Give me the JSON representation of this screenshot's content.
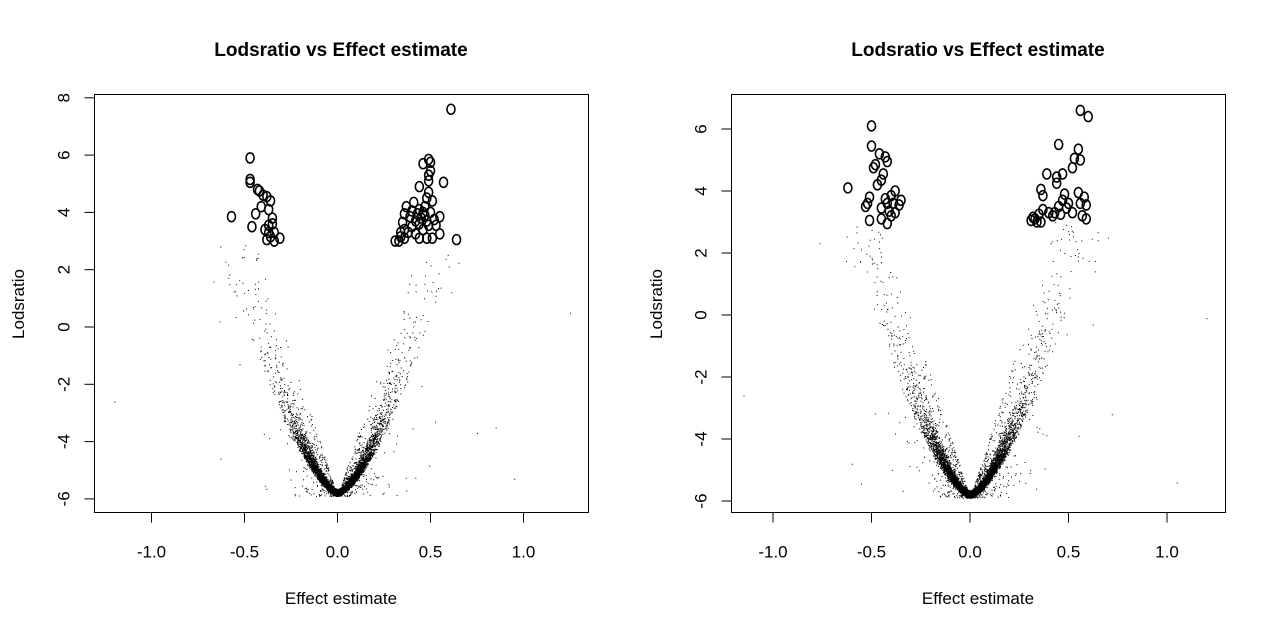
{
  "chart_data": [
    {
      "type": "scatter",
      "title": "Lodsratio vs Effect estimate",
      "xlabel": "Effect estimate",
      "ylabel": "Lodsratio",
      "xlim": [
        -1.3,
        1.35
      ],
      "ylim": [
        -6.3,
        8.2
      ],
      "xticks": [
        -1.0,
        -0.5,
        0.0,
        0.5,
        1.0
      ],
      "xtick_labels": [
        "-1.0",
        "-0.5",
        "0.0",
        "0.5",
        "1.0"
      ],
      "yticks": [
        -6,
        -4,
        -2,
        0,
        2,
        4,
        6,
        8
      ],
      "ytick_labels": [
        "-6",
        "-4",
        "-2",
        "0",
        "2",
        "4",
        "6",
        "8"
      ],
      "grid": false,
      "legend": "none",
      "background_points": {
        "description": "volcano-shaped cloud of small dots: y ≈ -5.9 + k·|x|, dense near x=0",
        "min_y": -5.9,
        "vertex_x": 0.0,
        "approx_count": 6000,
        "outliers": [
          [
            -1.2,
            -2.6
          ],
          [
            1.25,
            0.5
          ],
          [
            -0.63,
            -4.6
          ],
          [
            0.85,
            -3.5
          ],
          [
            0.95,
            -5.3
          ],
          [
            0.75,
            -3.7
          ]
        ]
      },
      "highlighted_points": [
        [
          0.61,
          7.6
        ],
        [
          -0.47,
          5.9
        ],
        [
          -0.57,
          3.85
        ],
        [
          -0.47,
          5.15
        ],
        [
          -0.47,
          5.05
        ],
        [
          -0.43,
          4.8
        ],
        [
          -0.42,
          4.75
        ],
        [
          -0.4,
          4.6
        ],
        [
          -0.38,
          4.55
        ],
        [
          -0.36,
          4.4
        ],
        [
          -0.41,
          4.2
        ],
        [
          -0.37,
          4.1
        ],
        [
          -0.44,
          3.95
        ],
        [
          -0.35,
          3.8
        ],
        [
          -0.35,
          3.6
        ],
        [
          -0.37,
          3.55
        ],
        [
          -0.46,
          3.5
        ],
        [
          -0.39,
          3.4
        ],
        [
          -0.37,
          3.3
        ],
        [
          -0.34,
          3.3
        ],
        [
          -0.36,
          3.15
        ],
        [
          -0.38,
          3.05
        ],
        [
          -0.34,
          3.0
        ],
        [
          -0.31,
          3.1
        ],
        [
          0.49,
          5.85
        ],
        [
          0.5,
          5.75
        ],
        [
          0.46,
          5.7
        ],
        [
          0.5,
          5.45
        ],
        [
          0.49,
          5.3
        ],
        [
          0.49,
          5.1
        ],
        [
          0.57,
          5.05
        ],
        [
          0.44,
          4.9
        ],
        [
          0.49,
          4.7
        ],
        [
          0.48,
          4.5
        ],
        [
          0.51,
          4.4
        ],
        [
          0.41,
          4.35
        ],
        [
          0.47,
          4.2
        ],
        [
          0.37,
          4.2
        ],
        [
          0.44,
          4.1
        ],
        [
          0.4,
          4.05
        ],
        [
          0.46,
          4.0
        ],
        [
          0.5,
          4.0
        ],
        [
          0.36,
          3.95
        ],
        [
          0.43,
          3.95
        ],
        [
          0.47,
          3.9
        ],
        [
          0.55,
          3.85
        ],
        [
          0.39,
          3.85
        ],
        [
          0.45,
          3.8
        ],
        [
          0.52,
          3.75
        ],
        [
          0.42,
          3.7
        ],
        [
          0.48,
          3.7
        ],
        [
          0.35,
          3.65
        ],
        [
          0.44,
          3.6
        ],
        [
          0.49,
          3.55
        ],
        [
          0.53,
          3.55
        ],
        [
          0.4,
          3.5
        ],
        [
          0.36,
          3.4
        ],
        [
          0.46,
          3.4
        ],
        [
          0.34,
          3.3
        ],
        [
          0.38,
          3.3
        ],
        [
          0.42,
          3.25
        ],
        [
          0.55,
          3.25
        ],
        [
          0.34,
          3.15
        ],
        [
          0.36,
          3.1
        ],
        [
          0.44,
          3.1
        ],
        [
          0.48,
          3.1
        ],
        [
          0.51,
          3.1
        ],
        [
          0.33,
          3.0
        ],
        [
          0.64,
          3.05
        ],
        [
          0.31,
          3.0
        ]
      ]
    },
    {
      "type": "scatter",
      "title": "Lodsratio vs Effect estimate",
      "xlabel": "Effect estimate",
      "ylabel": "Lodsratio",
      "xlim": [
        -1.28,
        1.3
      ],
      "ylim": [
        -6.3,
        7.0
      ],
      "xticks": [
        -1.0,
        -0.5,
        0.0,
        0.5,
        1.0
      ],
      "xtick_labels": [
        "-1.0",
        "-0.5",
        "0.0",
        "0.5",
        "1.0"
      ],
      "yticks": [
        -6,
        -4,
        -2,
        0,
        2,
        4,
        6
      ],
      "ytick_labels": [
        "-6",
        "-4",
        "-2",
        "0",
        "2",
        "4",
        "6"
      ],
      "grid": false,
      "legend": "none",
      "background_points": {
        "description": "volcano-shaped cloud of small dots: y ≈ -5.9 + k·|x|, dense near x=0",
        "min_y": -5.9,
        "vertex_x": 0.0,
        "approx_count": 7000,
        "outliers": [
          [
            -1.15,
            -2.6
          ],
          [
            1.2,
            -0.1
          ],
          [
            -0.6,
            -4.8
          ],
          [
            0.72,
            -3.2
          ],
          [
            1.05,
            -5.4
          ],
          [
            0.7,
            2.5
          ]
        ]
      },
      "highlighted_points": [
        [
          0.56,
          6.6
        ],
        [
          0.6,
          6.4
        ],
        [
          -0.5,
          6.1
        ],
        [
          -0.5,
          5.45
        ],
        [
          0.45,
          5.5
        ],
        [
          -0.46,
          5.2
        ],
        [
          -0.43,
          5.1
        ],
        [
          0.55,
          5.35
        ],
        [
          -0.42,
          4.95
        ],
        [
          -0.48,
          4.85
        ],
        [
          -0.49,
          4.75
        ],
        [
          0.53,
          5.05
        ],
        [
          0.56,
          5.0
        ],
        [
          0.52,
          4.75
        ],
        [
          0.47,
          4.55
        ],
        [
          -0.44,
          4.55
        ],
        [
          -0.45,
          4.35
        ],
        [
          -0.47,
          4.2
        ],
        [
          0.39,
          4.55
        ],
        [
          0.44,
          4.45
        ],
        [
          0.44,
          4.25
        ],
        [
          -0.62,
          4.1
        ],
        [
          0.36,
          4.05
        ],
        [
          0.37,
          3.85
        ],
        [
          0.48,
          3.9
        ],
        [
          -0.38,
          4.0
        ],
        [
          -0.4,
          3.85
        ],
        [
          -0.43,
          3.75
        ],
        [
          -0.35,
          3.7
        ],
        [
          -0.42,
          3.6
        ],
        [
          -0.39,
          3.6
        ],
        [
          -0.36,
          3.55
        ],
        [
          -0.45,
          3.45
        ],
        [
          -0.41,
          3.35
        ],
        [
          -0.38,
          3.3
        ],
        [
          -0.4,
          3.2
        ],
        [
          -0.51,
          3.8
        ],
        [
          -0.52,
          3.6
        ],
        [
          -0.53,
          3.5
        ],
        [
          -0.45,
          3.1
        ],
        [
          -0.51,
          3.05
        ],
        [
          -0.42,
          2.95
        ],
        [
          0.55,
          3.95
        ],
        [
          0.58,
          3.8
        ],
        [
          0.56,
          3.6
        ],
        [
          0.59,
          3.55
        ],
        [
          0.5,
          3.6
        ],
        [
          0.47,
          3.7
        ],
        [
          0.45,
          3.5
        ],
        [
          0.43,
          3.3
        ],
        [
          0.46,
          3.25
        ],
        [
          0.42,
          3.2
        ],
        [
          0.4,
          3.3
        ],
        [
          0.37,
          3.4
        ],
        [
          0.35,
          3.25
        ],
        [
          0.33,
          3.1
        ],
        [
          0.34,
          3.0
        ],
        [
          0.36,
          3.0
        ],
        [
          0.31,
          3.05
        ],
        [
          0.32,
          3.15
        ],
        [
          0.57,
          3.2
        ],
        [
          0.59,
          3.1
        ],
        [
          0.52,
          3.3
        ],
        [
          0.49,
          3.45
        ]
      ]
    }
  ]
}
